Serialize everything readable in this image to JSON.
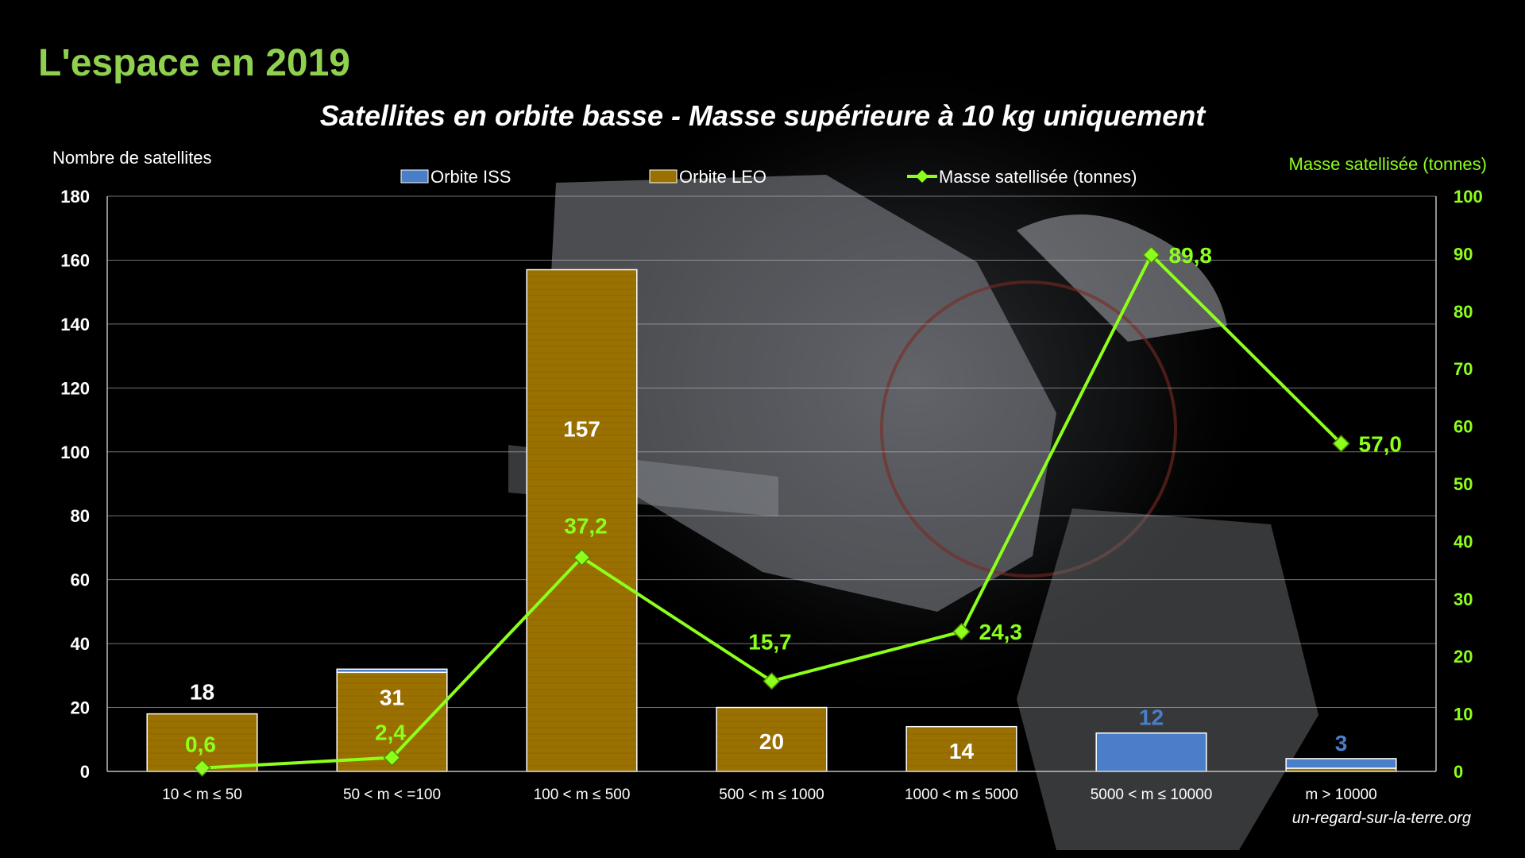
{
  "page_title": "L'espace en 2019",
  "credit": "un-regard-sur-la-terre.org",
  "colors": {
    "background": "#000000",
    "title": "#8fd14f",
    "iss": "#4a7ec9",
    "leo": "#9a7000",
    "mass_line": "#8cff1a",
    "grid": "#bfbfbf",
    "axis_text": "#ffffff"
  },
  "chart_data": {
    "type": "bar",
    "title": "Satellites en orbite basse - Masse supérieure à 10 kg uniquement",
    "ylabel": "Nombre de satellites",
    "y2label": "Masse satellisée (tonnes)",
    "ylim": [
      0,
      180
    ],
    "y2lim": [
      0,
      100
    ],
    "yticks": [
      "0",
      "20",
      "40",
      "60",
      "80",
      "100",
      "120",
      "140",
      "160",
      "180"
    ],
    "y2ticks": [
      "0",
      "10",
      "20",
      "30",
      "40",
      "50",
      "60",
      "70",
      "80",
      "90",
      "100"
    ],
    "grid": true,
    "legend_position": "top",
    "stacked": true,
    "categories": [
      "10 < m ≤ 50",
      "50 < m < =100",
      "100 < m ≤ 500",
      "500 < m ≤ 1000",
      "1000 < m ≤ 5000",
      "5000 < m ≤ 10000",
      "m > 10000"
    ],
    "series": [
      {
        "name": "Orbite ISS",
        "kind": "bar",
        "axis": "left",
        "values": [
          0,
          1,
          0,
          0,
          0,
          12,
          3
        ],
        "labels": [
          "",
          "",
          "",
          "",
          "",
          "12",
          "3"
        ]
      },
      {
        "name": "Orbite LEO",
        "kind": "bar",
        "axis": "left",
        "values": [
          18,
          31,
          157,
          20,
          14,
          0,
          1
        ],
        "labels": [
          "18",
          "31",
          "157",
          "20",
          "14",
          "",
          ""
        ]
      },
      {
        "name": "Masse satellisée (tonnes)",
        "kind": "line",
        "axis": "right",
        "values": [
          0.6,
          2.4,
          37.2,
          15.7,
          24.3,
          89.8,
          57.0
        ],
        "labels": [
          "0,6",
          "2,4",
          "37,2",
          "15,7",
          "24,3",
          "89,8",
          "57,0"
        ]
      }
    ]
  }
}
